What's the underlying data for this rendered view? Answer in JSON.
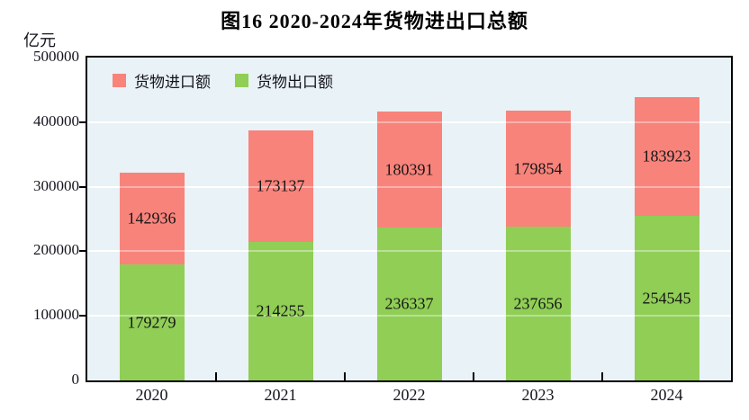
{
  "title": "图16  2020-2024年货物进出口总额",
  "y_unit_label": "亿元",
  "legend": [
    {
      "label": "货物进口额",
      "color": "#f8837b",
      "icon": "red-square-swatch"
    },
    {
      "label": "货物出口额",
      "color": "#90ce56",
      "icon": "green-square-swatch"
    }
  ],
  "chart_data": {
    "type": "bar",
    "stacked": true,
    "title": "图16  2020-2024年货物进出口总额",
    "ylabel": "亿元",
    "categories": [
      "2020",
      "2021",
      "2022",
      "2023",
      "2024"
    ],
    "series": [
      {
        "name": "货物出口额",
        "color": "#90ce56",
        "values": [
          179279,
          214255,
          236337,
          237656,
          254545
        ]
      },
      {
        "name": "货物进口额",
        "color": "#f8837b",
        "values": [
          142936,
          173137,
          180391,
          179854,
          183923
        ]
      }
    ],
    "ylim": [
      0,
      500000
    ],
    "ytick_interval": 100000,
    "ytick_labels": [
      "0",
      "100000",
      "200000",
      "300000",
      "400000",
      "500000"
    ],
    "grid": true,
    "gridline_color": "#ffffff",
    "plot_background": "#e9f2f6",
    "legend_position": "top-left-inside"
  }
}
